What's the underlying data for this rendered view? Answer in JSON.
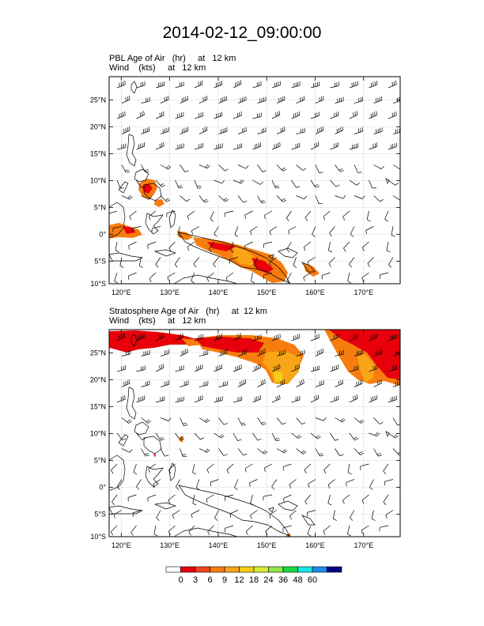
{
  "title": "2014-02-12_09:00:00",
  "panels": [
    {
      "id": "pbl",
      "field_line": "PBL Age of Air   (hr)     at   12 km",
      "wind_line": "Wind    (kts)     at   12 km",
      "lon_ticks": [
        "120°E",
        "130°E",
        "140°E",
        "150°E",
        "160°E",
        "170°E"
      ],
      "lat_ticks": [
        "25°N",
        "20°N",
        "15°N",
        "10°N",
        "5°N",
        "0°",
        "5°S",
        "10°S"
      ]
    },
    {
      "id": "strat",
      "field_line": "Stratosphere Age of Air   (hr)     at  12 km",
      "wind_line": "Wind    (kts)     at   12 km",
      "lon_ticks": [
        "120°E",
        "130°E",
        "140°E",
        "150°E",
        "160°E",
        "170°E"
      ],
      "lat_ticks": [
        "25°N",
        "20°N",
        "15°N",
        "10°N",
        "5°N",
        "0°",
        "5°S",
        "10°S"
      ]
    }
  ],
  "colorbar": {
    "labels": [
      "0",
      "3",
      "6",
      "9",
      "12",
      "18",
      "24",
      "36",
      "48",
      "60"
    ],
    "colors": [
      "#ffffff",
      "#e8000b",
      "#f0461e",
      "#f77d0f",
      "#f8a617",
      "#f6cf1a",
      "#d6ec36",
      "#8ee84a",
      "#1ed845",
      "#16e6e6",
      "#1e8ce8",
      "#000080"
    ]
  }
}
